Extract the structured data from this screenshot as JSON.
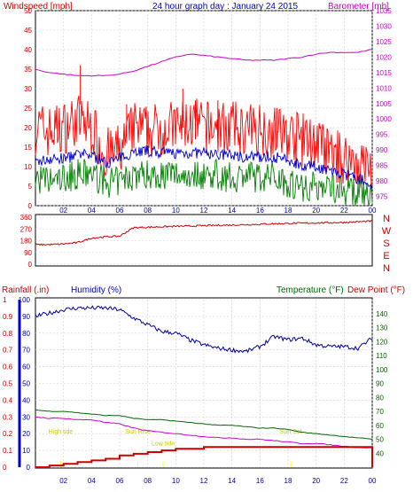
{
  "header": {
    "title": "24 hour graph day : January 24 2015",
    "left_axis": "Windspeed [mph]",
    "right_axis": "Barometer [mb]"
  },
  "bottom_labels": {
    "rainfall": "Rainfall (.in)",
    "humidity": "Humidity (%)",
    "temperature": "Temperature (°F)",
    "dewpoint": "Dew Point (°F)"
  },
  "hour_ticks": [
    "02",
    "04",
    "06",
    "08",
    "10",
    "12",
    "14",
    "16",
    "18",
    "20",
    "22",
    "00"
  ],
  "colors": {
    "wind": "#ff0000",
    "gust": "#ff0000",
    "avg": "#0000cc",
    "low": "#008000",
    "barometer": "#cc00cc",
    "direction": "#cc0000",
    "rain": "#cc0000",
    "humidity": "#000099",
    "temperature": "#006600",
    "dewpoint": "#cc00cc",
    "daylight": "#ffff00"
  },
  "chart_data": [
    {
      "type": "line",
      "title": "24 hour graph day : January 24 2015",
      "x": [
        0,
        1,
        2,
        3,
        4,
        5,
        6,
        7,
        8,
        9,
        10,
        11,
        12,
        13,
        14,
        15,
        16,
        17,
        18,
        19,
        20,
        21,
        22,
        23,
        24
      ],
      "ylabel_left": "Windspeed [mph]",
      "ylim_left": [
        0,
        50
      ],
      "yticks_left": [
        0,
        5,
        10,
        15,
        20,
        25,
        30,
        35,
        40,
        45,
        50
      ],
      "ylabel_right": "Barometer [mb]",
      "ylim_right": [
        972,
        1035
      ],
      "yticks_right": [
        975,
        980,
        985,
        990,
        995,
        1000,
        1005,
        1010,
        1015,
        1020,
        1025,
        1030,
        1035
      ],
      "series": [
        {
          "axis": "left",
          "kind": "gust",
          "values": [
            20,
            19,
            20,
            22,
            20,
            13,
            14,
            20,
            19,
            20,
            20,
            21,
            20,
            20,
            20,
            19,
            20,
            19,
            18,
            17,
            16,
            13,
            12,
            11,
            9
          ],
          "peaks": [
            [
              3.2,
              36
            ],
            [
              6.5,
              26
            ],
            [
              10.5,
              30
            ],
            [
              11.4,
              27
            ],
            [
              13,
              27
            ],
            [
              17.2,
              25
            ]
          ]
        },
        {
          "axis": "left",
          "kind": "avg",
          "values": [
            11,
            12,
            12,
            13,
            13,
            11,
            12,
            14,
            14,
            13.5,
            13.5,
            13.5,
            13.5,
            13,
            13,
            12.5,
            12.5,
            12.5,
            11.5,
            10.5,
            10,
            9,
            8,
            7,
            5
          ]
        },
        {
          "axis": "left",
          "kind": "low",
          "values": [
            7,
            6,
            7,
            8,
            8,
            6,
            6,
            8,
            8,
            8,
            8,
            8,
            8,
            8,
            7,
            8,
            7,
            8,
            6,
            5,
            5,
            5,
            4,
            3,
            1.5
          ]
        },
        {
          "axis": "right",
          "kind": "barometer",
          "values": [
            1016,
            1015,
            1014.5,
            1014,
            1014,
            1014,
            1014.5,
            1015.5,
            1017,
            1018.5,
            1020,
            1021,
            1020.5,
            1020,
            1019.5,
            1019,
            1019,
            1019,
            1019.5,
            1020,
            1021,
            1021.5,
            1021.5,
            1021.5,
            1022.5
          ]
        }
      ]
    },
    {
      "type": "line",
      "title": "",
      "x": [
        0,
        1,
        2,
        3,
        4,
        5,
        6,
        7,
        8,
        9,
        10,
        11,
        12,
        13,
        14,
        15,
        16,
        17,
        18,
        19,
        20,
        21,
        22,
        23,
        24
      ],
      "ylabel_right": "N W S E N",
      "ylim": [
        0,
        360
      ],
      "yticks": [
        0,
        90,
        180,
        270,
        360
      ],
      "compass": [
        "N",
        "W",
        "S",
        "E",
        "N"
      ],
      "series": [
        {
          "kind": "direction",
          "values": [
            150,
            150,
            155,
            165,
            200,
            210,
            215,
            280,
            283,
            287,
            290,
            292,
            295,
            298,
            300,
            303,
            306,
            310,
            312,
            314,
            316,
            318,
            320,
            325,
            330
          ]
        }
      ]
    },
    {
      "type": "line",
      "title": "",
      "x": [
        0,
        1,
        2,
        3,
        4,
        5,
        6,
        7,
        8,
        9,
        10,
        11,
        12,
        13,
        14,
        15,
        16,
        17,
        18,
        19,
        20,
        21,
        22,
        23,
        24
      ],
      "ylabel_left_rain": "Rainfall (.in)",
      "ylim_rain": [
        0,
        1.0
      ],
      "yticks_rain": [
        0,
        0.1,
        0.2,
        0.3,
        0.4,
        0.5,
        0.6,
        0.7,
        0.8,
        0.9,
        1.0
      ],
      "ylabel_left_humidity": "Humidity (%)",
      "ylim_humidity": [
        0,
        100
      ],
      "yticks_humidity": [
        0,
        10,
        20,
        30,
        40,
        50,
        60,
        70,
        80,
        90,
        100
      ],
      "ylabel_right": "Temperature (°F)",
      "ylim_right": [
        30,
        150
      ],
      "yticks_right": [
        40,
        50,
        60,
        70,
        80,
        90,
        100,
        110,
        120,
        130,
        140
      ],
      "series": [
        {
          "axis": "humidity",
          "kind": "humidity",
          "values": [
            90,
            92,
            94,
            95,
            95,
            95,
            94,
            89,
            85,
            81,
            80,
            76,
            73,
            71,
            70,
            69,
            72,
            78,
            76,
            77,
            73,
            72,
            72,
            71,
            77
          ]
        },
        {
          "axis": "temperature",
          "kind": "temperature",
          "values": [
            71,
            70,
            70,
            69,
            68,
            67,
            67,
            65,
            64,
            64,
            63,
            62,
            61,
            60,
            60,
            59,
            58,
            58,
            57,
            55,
            54,
            53,
            52,
            51,
            50
          ]
        },
        {
          "axis": "temperature",
          "kind": "dewpoint",
          "values": [
            66,
            65,
            65,
            64,
            64,
            62,
            61,
            58,
            56,
            55,
            54,
            53,
            52,
            51,
            51,
            50,
            50,
            49,
            48,
            47,
            47,
            46,
            45,
            44,
            44
          ]
        },
        {
          "axis": "rain",
          "kind": "rain",
          "values": [
            0,
            0.01,
            0.02,
            0.03,
            0.04,
            0.05,
            0.07,
            0.08,
            0.09,
            0.1,
            0.11,
            0.11,
            0.12,
            0.12,
            0.12,
            0.12,
            0.12,
            0.12,
            0.12,
            0.12,
            0.12,
            0.12,
            0.12,
            0.12,
            0.12
          ]
        }
      ],
      "annotations": [
        {
          "text": "Sun Rise",
          "x": 7.3
        },
        {
          "text": "Sun Set",
          "x": 18.2
        },
        {
          "text": "Low tide",
          "x": 9.1
        },
        {
          "text": "High tide",
          "x": 1.8
        }
      ]
    }
  ]
}
